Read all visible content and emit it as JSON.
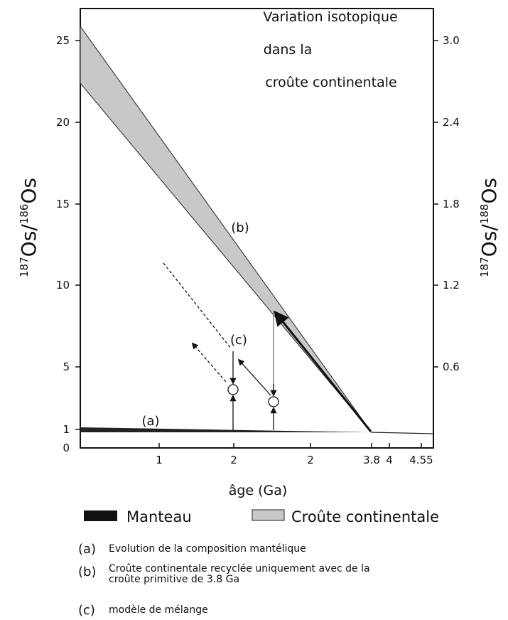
{
  "title": [
    "Variation isotopique",
    "dans la",
    "croûte continentale"
  ],
  "left_axis": {
    "label": [
      "187",
      "Os/",
      "186",
      "Os"
    ],
    "ticks": [
      "25",
      "20",
      "15",
      "10",
      "5",
      "1",
      "0"
    ]
  },
  "right_axis": {
    "label": [
      "187",
      "Os/",
      "188",
      "Os"
    ],
    "ticks": [
      "3.0",
      "2.4",
      "1.8",
      "1.2",
      "0.6"
    ]
  },
  "x_axis": {
    "label": "âge (Ga)",
    "ticks": [
      "1",
      "2",
      "2",
      "3.8",
      "4",
      "4.55"
    ]
  },
  "curve_labels": [
    "(b)",
    "(c)",
    "(a)"
  ],
  "legend": [
    "Manteau",
    "Croûte continentale"
  ],
  "notes": [
    {
      "key": "(a)",
      "text": [
        "Evolution de la composition mantélique"
      ]
    },
    {
      "key": "(b)",
      "text": [
        "Croûte continentale recyclée uniquement avec de la",
        "croûte primitive de 3.8 Ga"
      ]
    },
    {
      "key": "(c)",
      "text": [
        "modèle de mélange"
      ]
    }
  ]
}
